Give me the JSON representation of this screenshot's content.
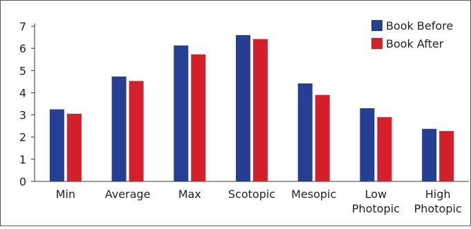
{
  "chart_data": {
    "type": "bar",
    "categories": [
      [
        "Min"
      ],
      [
        "Average"
      ],
      [
        "Max"
      ],
      [
        "Scotopic"
      ],
      [
        "Mesopic"
      ],
      [
        "Low",
        "Photopic"
      ],
      [
        "High",
        "Photopic"
      ]
    ],
    "series": [
      {
        "name": "Book Before",
        "color": "#253f93",
        "values": [
          3.25,
          4.73,
          6.13,
          6.6,
          4.42,
          3.3,
          2.37
        ]
      },
      {
        "name": "Book After",
        "color": "#d4202a",
        "values": [
          3.05,
          4.53,
          5.73,
          6.42,
          3.9,
          2.9,
          2.27
        ]
      }
    ],
    "y_ticks": [
      0,
      1,
      2,
      3,
      4,
      5,
      6,
      7
    ],
    "ylim": [
      0,
      7
    ],
    "grid": false,
    "legend_position": "top-right"
  }
}
